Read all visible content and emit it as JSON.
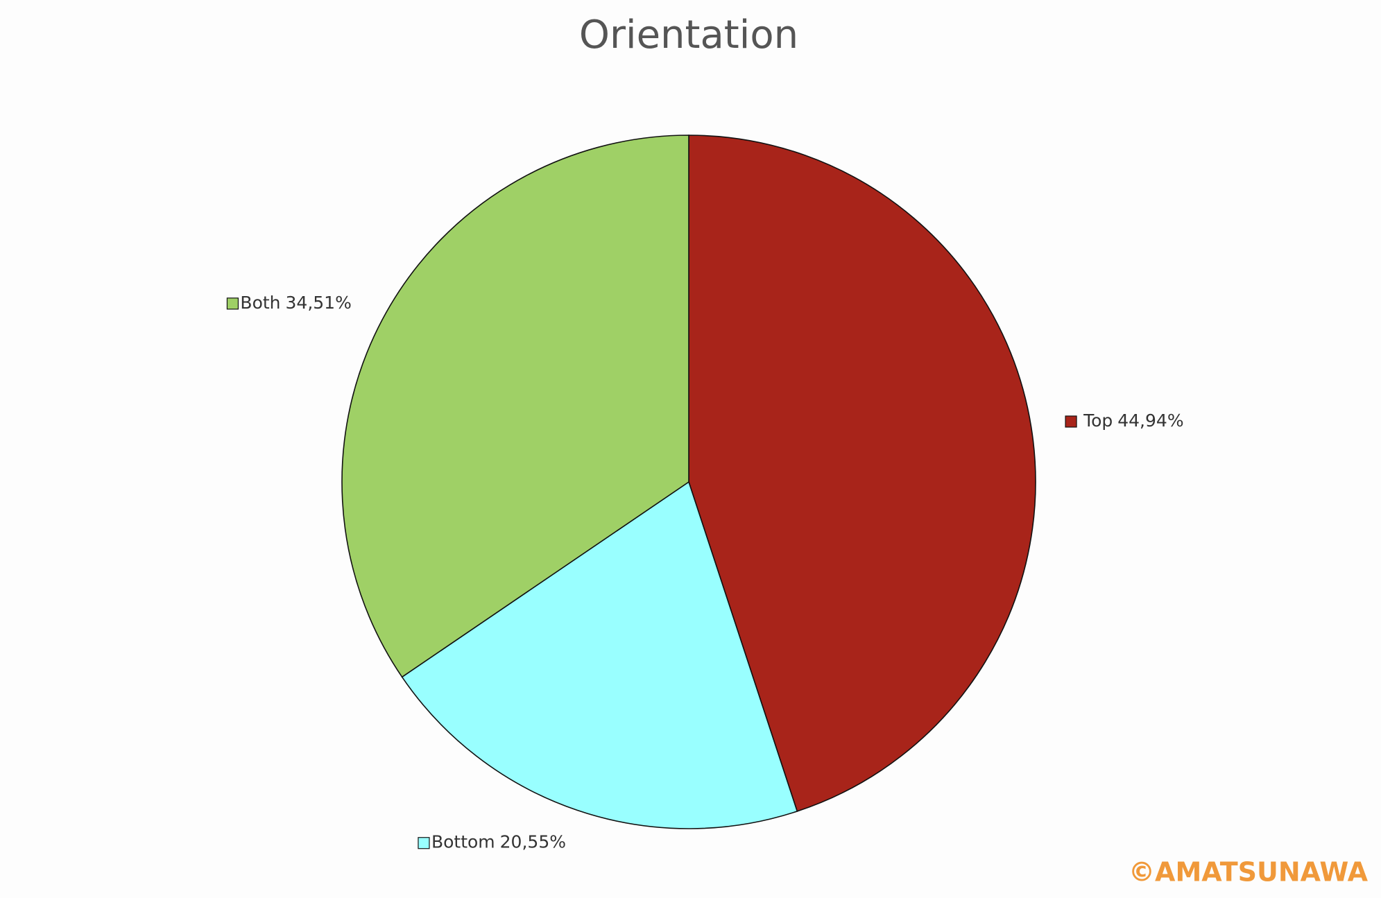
{
  "chart_data": {
    "type": "pie",
    "title": "Orientation",
    "categories": [
      "Top",
      "Bottom",
      "Both"
    ],
    "values": [
      44.94,
      20.55,
      34.51
    ],
    "value_labels": [
      "44,94%",
      "20,55%",
      "34,51%"
    ],
    "colors": [
      "#a8241a",
      "#99ffff",
      "#9fd066"
    ],
    "watermark": "©AMATSUNAWA"
  }
}
